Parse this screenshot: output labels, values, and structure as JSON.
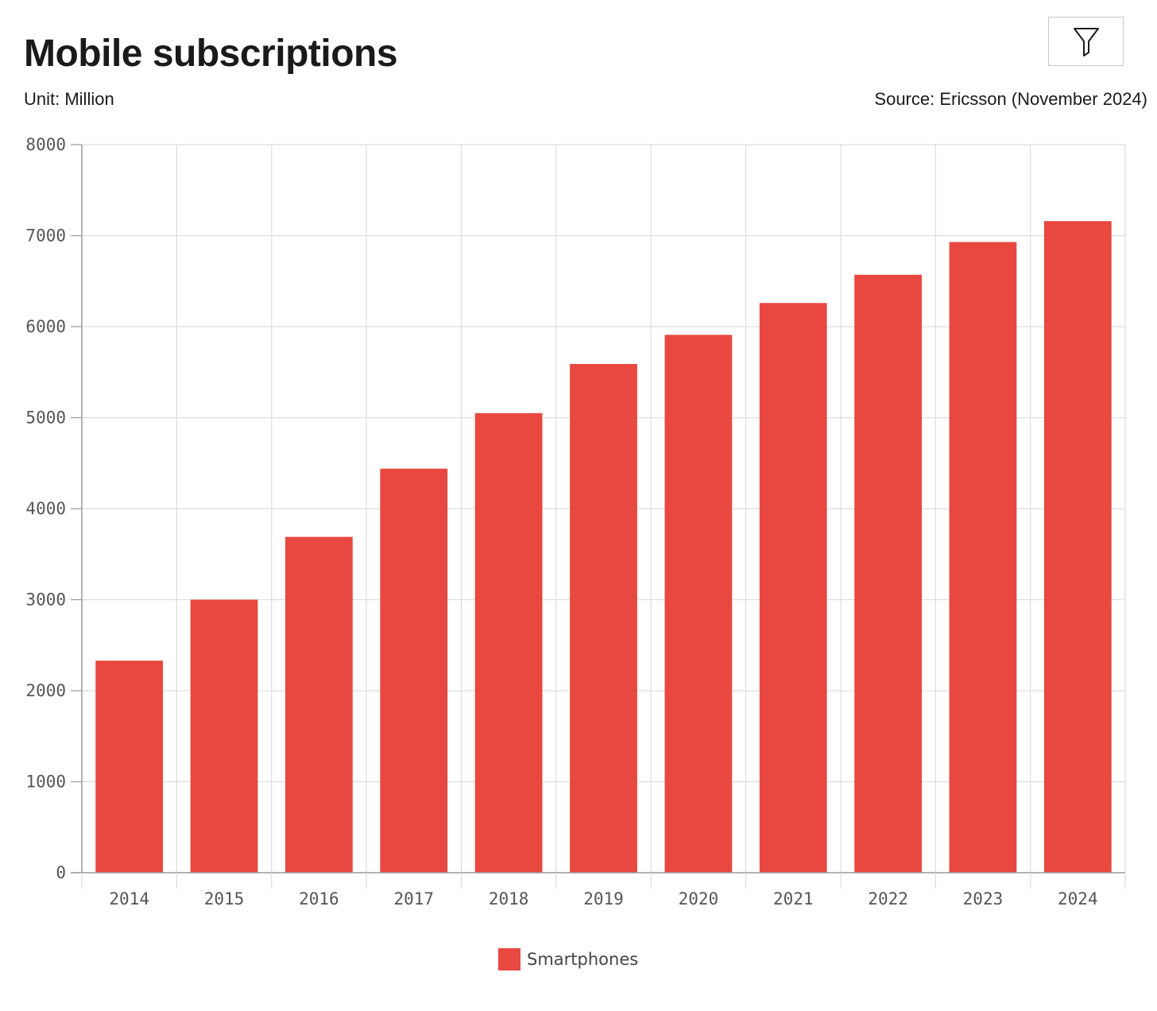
{
  "header": {
    "title": "Mobile subscriptions",
    "unit": "Unit: Million",
    "source": "Source: Ericsson (November 2024)",
    "filter_icon": "filter-funnel-icon"
  },
  "colors": {
    "bar": "#e8483f",
    "grid": "#dddddd",
    "axis": "#999999",
    "tick_text": "#555555"
  },
  "chart_data": {
    "type": "bar",
    "title": "Mobile subscriptions",
    "xlabel": "",
    "ylabel": "",
    "categories": [
      "2014",
      "2015",
      "2016",
      "2017",
      "2018",
      "2019",
      "2020",
      "2021",
      "2022",
      "2023",
      "2024"
    ],
    "series": [
      {
        "name": "Smartphones",
        "values": [
          2330,
          3000,
          3690,
          4440,
          5050,
          5590,
          5910,
          6260,
          6570,
          6930,
          7160
        ]
      }
    ],
    "ylim": [
      0,
      8000
    ],
    "yticks": [
      0,
      1000,
      2000,
      3000,
      4000,
      5000,
      6000,
      7000,
      8000
    ],
    "grid": true,
    "legend_position": "bottom-center"
  },
  "legend": {
    "label": "Smartphones"
  }
}
